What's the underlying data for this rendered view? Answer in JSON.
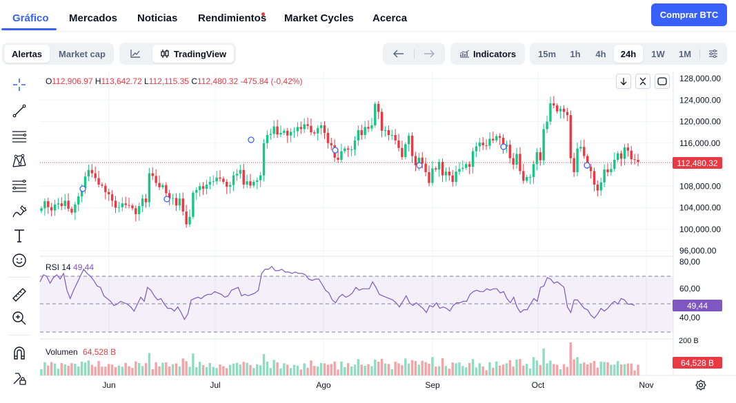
{
  "nav": {
    "tabs": [
      {
        "label": "Gráfico",
        "active": true
      },
      {
        "label": "Mercados"
      },
      {
        "label": "Noticias"
      },
      {
        "label": "Rendimientos"
      },
      {
        "label": "Market Cycles"
      },
      {
        "label": "Acerca"
      }
    ],
    "buy_button": "Comprar BTC"
  },
  "toolbar": {
    "mode_tabs": [
      {
        "label": "Alertas",
        "active": true
      },
      {
        "label": "Market cap"
      }
    ],
    "chart_type_label": "TradingView",
    "indicators_label": "Indicators",
    "intervals": [
      {
        "label": "15m"
      },
      {
        "label": "1h"
      },
      {
        "label": "4h"
      },
      {
        "label": "24h",
        "active": true
      },
      {
        "label": "1W"
      },
      {
        "label": "1M"
      }
    ]
  },
  "tools": [
    "crosshair-icon",
    "trend-line-icon",
    "horizontal-lines-icon",
    "pattern-icon",
    "fib-icon",
    "brush-icon",
    "text-icon",
    "emoji-icon",
    "ruler-icon",
    "zoom-in-icon",
    "magnet-icon",
    "lock-icon"
  ],
  "ohlc": {
    "o": "112,906.97",
    "h": "113,642.72",
    "l": "112,115.35",
    "c": "112,480.32",
    "change": "-475.84 (-0,42%)"
  },
  "rsi": {
    "label": "RSI 14",
    "value": "49,44",
    "levels": [
      "80,00",
      "60,00",
      "40,00"
    ]
  },
  "volume": {
    "label": "Volumen",
    "value": "64,528 B",
    "axis_top": "200 B"
  },
  "last_price": "112,480.32",
  "colors": {
    "up": "#16c784",
    "down": "#ea3943",
    "rsi": "#7e57c2",
    "accent": "#3861fb"
  },
  "chart_data": {
    "type": "candlestick",
    "y_ticks": [
      "128,000.00",
      "124,000.00",
      "120,000.00",
      "116,000.00",
      "112,000.00",
      "108,000.00",
      "104,000.00",
      "100,000.00",
      "96,000.00"
    ],
    "ylim": [
      96000,
      128000
    ],
    "x_ticks": [
      "Jun",
      "Jul",
      "Ago",
      "Sep",
      "Oct",
      "Nov"
    ],
    "closes": [
      103900,
      105200,
      104100,
      103500,
      104600,
      104800,
      104300,
      105300,
      103800,
      103100,
      104600,
      106100,
      107600,
      109800,
      111000,
      110400,
      109500,
      108300,
      108100,
      106900,
      106500,
      105300,
      104000,
      104100,
      104800,
      104500,
      104400,
      103900,
      102800,
      104300,
      105700,
      105000,
      110400,
      109900,
      108600,
      107800,
      108200,
      106700,
      105700,
      105800,
      104400,
      105700,
      103300,
      100900,
      102300,
      106800,
      107300,
      108000,
      107500,
      108300,
      108800,
      108900,
      109600,
      109400,
      108800,
      107900,
      108200,
      110000,
      110300,
      111000,
      108300,
      108900,
      108100,
      108800,
      109100,
      110000,
      116000,
      117500,
      117700,
      119100,
      117600,
      117900,
      118300,
      117400,
      118100,
      118200,
      119000,
      118600,
      119500,
      119200,
      118000,
      117800,
      118800,
      119300,
      117900,
      116000,
      115600,
      113300,
      112900,
      114500,
      115000,
      114800,
      114800,
      116500,
      118400,
      117500,
      119000,
      118700,
      119300,
      123300,
      121800,
      118300,
      118400,
      117500,
      117500,
      116500,
      115100,
      113400,
      115800,
      117400,
      113600,
      111900,
      113300,
      112200,
      110600,
      108600,
      111300,
      111100,
      112500,
      110000,
      110700,
      110000,
      108800,
      110700,
      111200,
      111400,
      112100,
      111600,
      114500,
      115400,
      116100,
      115600,
      115500,
      116800,
      116500,
      117300,
      117000,
      115300,
      115700,
      113200,
      112000,
      114000,
      110800,
      109000,
      109700,
      109700,
      112100,
      114300,
      112800,
      118600,
      120000,
      123400,
      123000,
      121900,
      122400,
      121800,
      121200,
      113200,
      110600,
      115000,
      115300,
      113600,
      111600,
      110800,
      108300,
      107200,
      108700,
      111100,
      110600,
      111200,
      112900,
      114100,
      113100,
      115200,
      114600,
      113000,
      112900,
      112480
    ],
    "rsi_values": [
      66,
      71,
      70,
      65,
      69,
      71,
      68,
      72,
      60,
      54,
      60,
      65,
      70,
      75,
      72,
      70,
      67,
      63,
      62,
      56,
      54,
      52,
      49,
      50,
      52,
      51,
      50,
      48,
      45,
      50,
      55,
      52,
      62,
      60,
      56,
      53,
      54,
      50,
      47,
      47,
      45,
      48,
      44,
      39,
      43,
      53,
      54,
      55,
      54,
      56,
      57,
      57,
      59,
      58,
      57,
      55,
      56,
      60,
      61,
      62,
      56,
      57,
      56,
      57,
      58,
      60,
      72,
      75,
      75,
      77,
      74,
      74,
      75,
      73,
      73,
      72,
      73,
      72,
      72,
      71,
      68,
      67,
      68,
      68,
      64,
      60,
      58,
      53,
      51,
      55,
      57,
      55,
      56,
      58,
      62,
      60,
      61,
      61,
      61,
      66,
      62,
      57,
      56,
      55,
      54,
      53,
      51,
      48,
      52,
      56,
      51,
      49,
      51,
      49,
      47,
      44,
      49,
      48,
      51,
      47,
      48,
      47,
      45,
      49,
      51,
      51,
      52,
      52,
      57,
      59,
      60,
      59,
      59,
      61,
      60,
      61,
      61,
      58,
      59,
      54,
      51,
      55,
      48,
      44,
      46,
      46,
      50,
      54,
      52,
      62,
      63,
      69,
      68,
      65,
      66,
      64,
      62,
      48,
      44,
      53,
      53,
      50,
      47,
      46,
      42,
      40,
      43,
      47,
      45,
      47,
      50,
      52,
      50,
      54,
      53,
      50,
      50,
      49
    ]
  }
}
